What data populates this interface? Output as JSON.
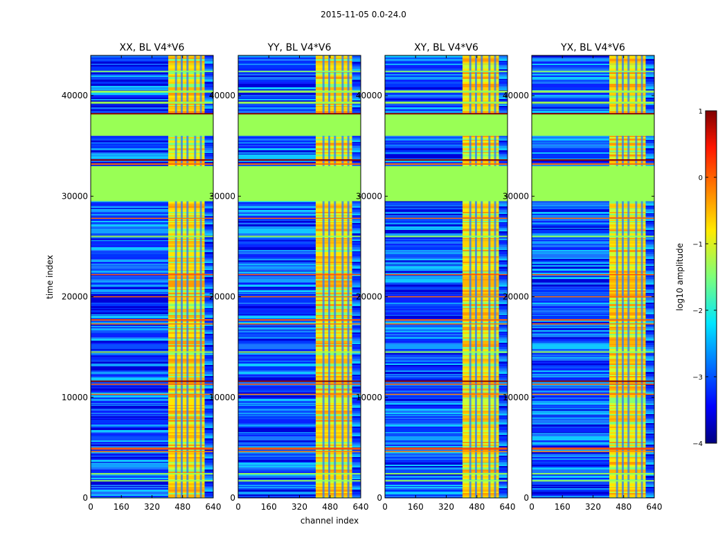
{
  "figure": {
    "title": "2015-11-05 0.0-24.0"
  },
  "chart_data": {
    "type": "heatmap",
    "title": "2015-11-05 0.0-24.0",
    "xlabel": "channel index",
    "ylabel": "time index",
    "xlim": [
      0,
      640
    ],
    "ylim": [
      0,
      44000
    ],
    "xticks": [
      "0",
      "160",
      "320",
      "480",
      "640"
    ],
    "yticks": [
      "0",
      "10000",
      "20000",
      "30000",
      "40000"
    ],
    "panels": [
      {
        "title": "XX, BL V4*V6",
        "strong_channels": [
          405,
          595
        ]
      },
      {
        "title": "YY, BL V4*V6",
        "strong_channels": [
          405,
          595
        ]
      },
      {
        "title": "XY, BL V4*V6",
        "strong_channels": [
          405,
          595
        ]
      },
      {
        "title": "YX, BL V4*V6",
        "strong_channels": [
          405,
          595
        ]
      }
    ],
    "flagged_time_ranges": [
      [
        29500,
        33000
      ],
      [
        36000,
        38200
      ]
    ],
    "colorbar": {
      "label": "log10 amplitude",
      "range": [
        -4,
        1
      ],
      "ticks": [
        "1",
        "0",
        "−1",
        "−2",
        "−3",
        "−4"
      ]
    }
  }
}
